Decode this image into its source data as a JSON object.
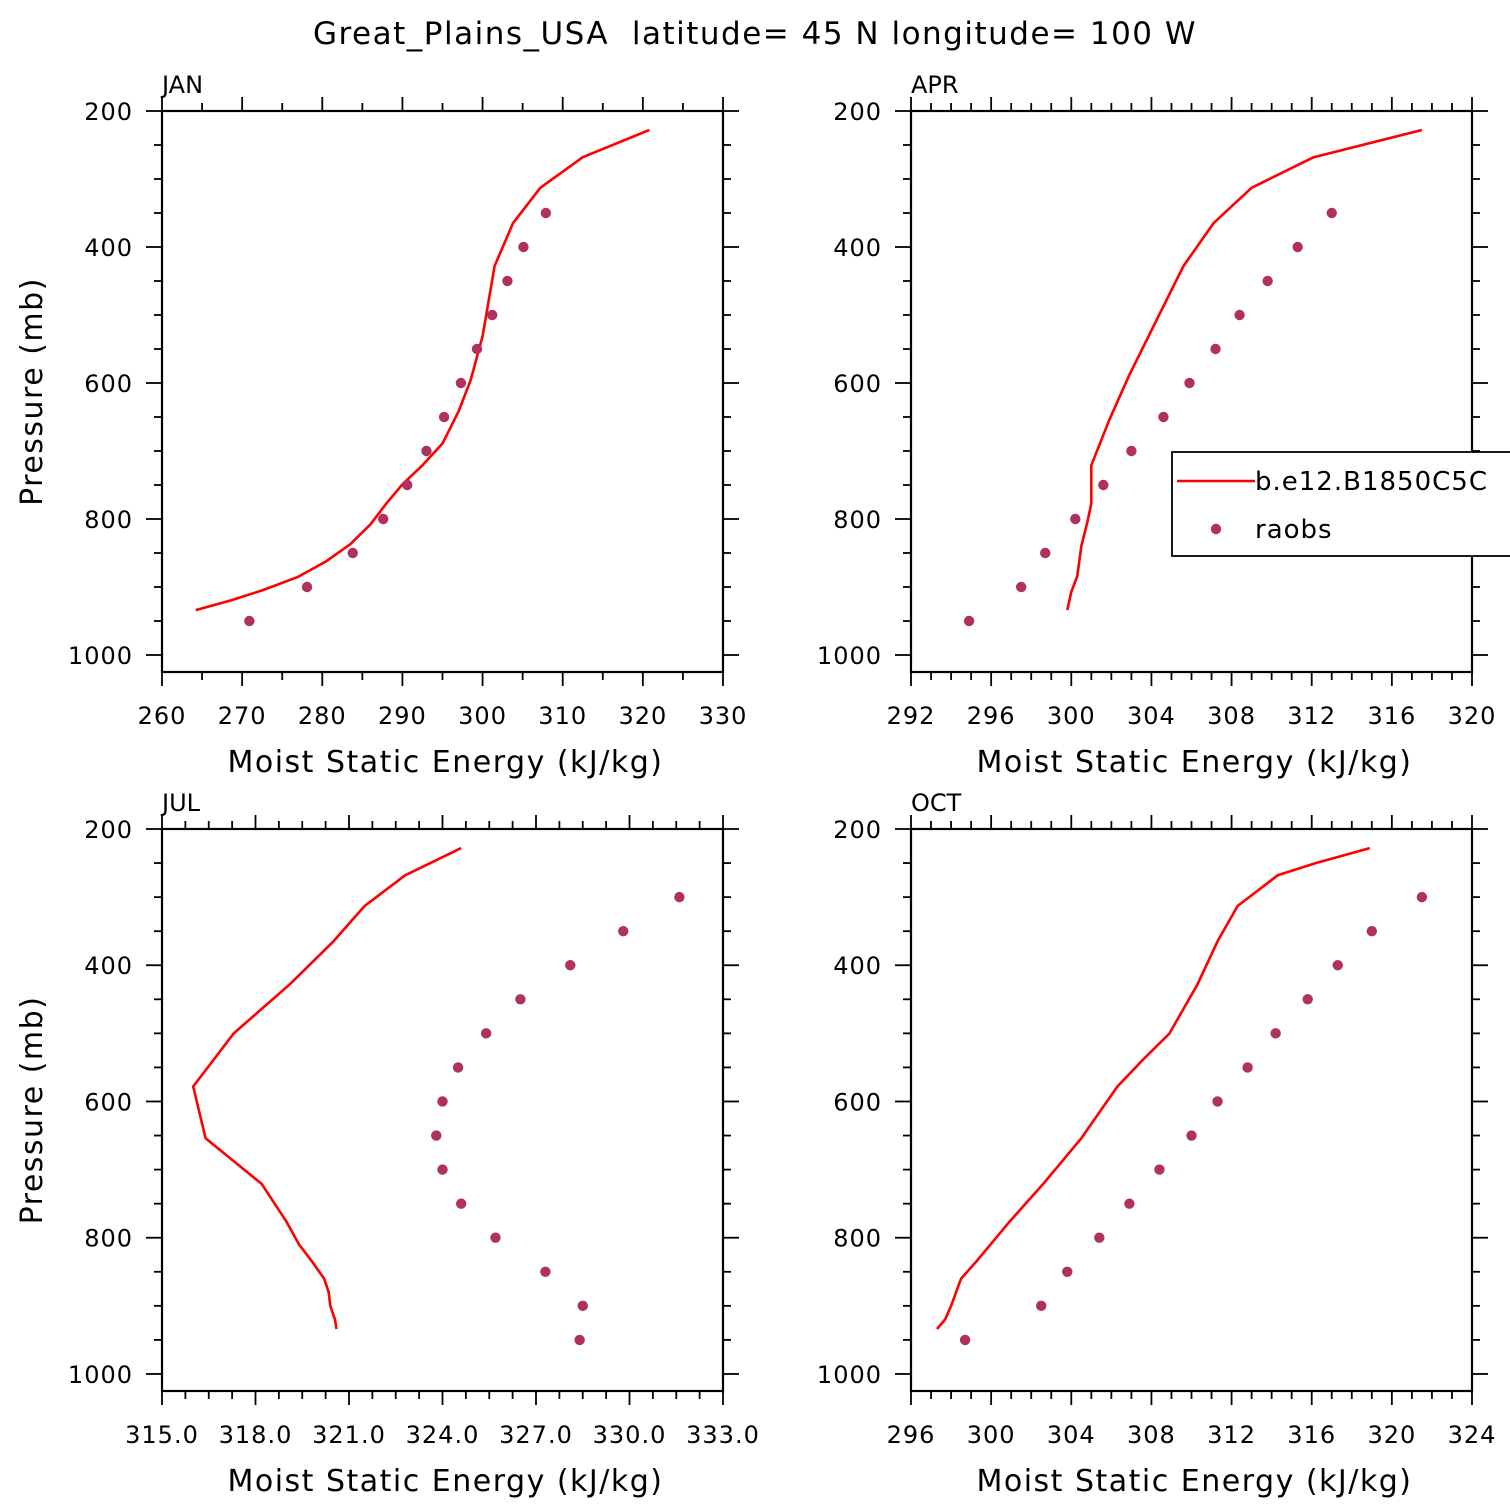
{
  "chart_data": {
    "title": "Great_Plains_USA  latitude= 45 N longitude= 100 W",
    "legend": {
      "placement": "right-middle of APR panel",
      "entries": [
        {
          "label": "b.e12.B1850C5C",
          "style": "line",
          "color": "#ff0000"
        },
        {
          "label": "raobs",
          "style": "marker",
          "color": "#b03060"
        }
      ]
    },
    "panels": [
      {
        "type": "line+scatter",
        "title": "JAN",
        "xlabel": "Moist Static Energy (kJ/kg)",
        "ylabel": "Pressure (mb)",
        "xlim": [
          260,
          330
        ],
        "xticks": [
          260,
          270,
          280,
          290,
          300,
          310,
          320,
          330
        ],
        "xtick_labels": [
          "260",
          "270",
          "280",
          "290",
          "300",
          "310",
          "320",
          "330"
        ],
        "xminor": 5,
        "ylim": [
          200,
          1025
        ],
        "yticks": [
          200,
          400,
          600,
          800,
          1000
        ],
        "ytick_labels": [
          "200",
          "400",
          "600",
          "800",
          "1000"
        ],
        "model": {
          "x": [
            264.2,
            268.5,
            272.5,
            277.0,
            280.5,
            283.5,
            286.0,
            288.0,
            290.0,
            292.5,
            295.0,
            297.0,
            298.5,
            300.0,
            301.5,
            303.8,
            307.2,
            312.5,
            320.8
          ],
          "y": [
            934,
            920,
            905,
            885,
            862,
            837,
            808,
            777,
            749,
            721,
            689,
            642,
            596,
            531,
            428,
            365,
            313,
            268,
            228
          ]
        },
        "obs": {
          "x": [
            270.9,
            278.1,
            283.8,
            287.6,
            290.6,
            293.0,
            295.2,
            297.3,
            299.3,
            301.2,
            303.1,
            305.1,
            307.9
          ],
          "y": [
            950,
            900,
            850,
            800,
            750,
            700,
            650,
            600,
            550,
            500,
            450,
            400,
            350
          ]
        }
      },
      {
        "type": "line+scatter",
        "title": "APR",
        "xlabel": "Moist Static Energy (kJ/kg)",
        "ylabel": "",
        "xlim": [
          292,
          320
        ],
        "xticks": [
          292,
          296,
          300,
          304,
          308,
          312,
          316,
          320
        ],
        "xtick_labels": [
          "292",
          "296",
          "300",
          "304",
          "308",
          "312",
          "316",
          "320"
        ],
        "xminor": 1,
        "ylim": [
          200,
          1025
        ],
        "yticks": [
          200,
          400,
          600,
          800,
          1000
        ],
        "ytick_labels": [
          "200",
          "400",
          "600",
          "800",
          "1000"
        ],
        "model": {
          "x": [
            299.8,
            300.0,
            300.3,
            300.5,
            300.8,
            301.0,
            301.0,
            301.9,
            302.9,
            304.3,
            305.6,
            307.1,
            309.0,
            312.1,
            317.5
          ],
          "y": [
            934,
            907,
            884,
            840,
            805,
            777,
            721,
            654,
            588,
            505,
            428,
            365,
            313,
            268,
            228
          ]
        },
        "obs": {
          "x": [
            294.9,
            297.5,
            298.7,
            300.2,
            301.6,
            303.0,
            304.6,
            305.9,
            307.2,
            308.4,
            309.8,
            311.3,
            313.0
          ],
          "y": [
            950,
            900,
            850,
            800,
            750,
            700,
            650,
            600,
            550,
            500,
            450,
            400,
            350
          ]
        }
      },
      {
        "type": "line+scatter",
        "title": "JUL",
        "xlabel": "Moist Static Energy (kJ/kg)",
        "ylabel": "Pressure (mb)",
        "xlim": [
          315,
          333
        ],
        "xticks": [
          315,
          318,
          321,
          324,
          327,
          330,
          333
        ],
        "xtick_labels": [
          "315.0",
          "318.0",
          "321.0",
          "324.0",
          "327.0",
          "330.0",
          "333.0"
        ],
        "xminor": 0.75,
        "ylim": [
          200,
          1025
        ],
        "yticks": [
          200,
          400,
          600,
          800,
          1000
        ],
        "ytick_labels": [
          "200",
          "400",
          "600",
          "800",
          "1000"
        ],
        "model": {
          "x": [
            320.6,
            320.55,
            320.4,
            320.35,
            320.2,
            319.8,
            319.4,
            319.0,
            318.2,
            316.4,
            316.0,
            317.3,
            319.1,
            320.5,
            321.5,
            322.8,
            324.6
          ],
          "y": [
            934,
            920,
            900,
            880,
            860,
            834,
            810,
            777,
            721,
            654,
            578,
            500,
            428,
            365,
            313,
            268,
            228
          ]
        },
        "obs": {
          "x": [
            328.4,
            328.5,
            327.3,
            325.7,
            324.6,
            324.0,
            323.8,
            324.0,
            324.5,
            325.4,
            326.5,
            328.1,
            329.8,
            331.6
          ],
          "y": [
            950,
            900,
            850,
            800,
            750,
            700,
            650,
            600,
            550,
            500,
            450,
            400,
            350,
            300
          ]
        }
      },
      {
        "type": "line+scatter",
        "title": "OCT",
        "xlabel": "Moist Static Energy (kJ/kg)",
        "ylabel": "",
        "xlim": [
          296,
          324
        ],
        "xticks": [
          296,
          300,
          304,
          308,
          312,
          316,
          320,
          324
        ],
        "xtick_labels": [
          "296",
          "300",
          "304",
          "308",
          "312",
          "316",
          "320",
          "324"
        ],
        "xminor": 1,
        "ylim": [
          200,
          1025
        ],
        "yticks": [
          200,
          400,
          600,
          800,
          1000
        ],
        "ytick_labels": [
          "200",
          "400",
          "600",
          "800",
          "1000"
        ],
        "model": {
          "x": [
            297.3,
            297.7,
            298.0,
            298.5,
            299.2,
            300.9,
            302.6,
            304.5,
            306.3,
            307.5,
            308.9,
            310.3,
            311.3,
            312.3,
            314.3,
            316.2,
            318.9
          ],
          "y": [
            934,
            920,
            900,
            860,
            837,
            777,
            721,
            654,
            578,
            541,
            500,
            428,
            365,
            313,
            268,
            250,
            228
          ]
        },
        "obs": {
          "x": [
            298.7,
            302.5,
            303.8,
            305.4,
            306.9,
            308.4,
            310.0,
            311.3,
            312.8,
            314.2,
            315.8,
            317.3,
            319.0,
            321.5
          ],
          "y": [
            950,
            900,
            850,
            800,
            750,
            700,
            650,
            600,
            550,
            500,
            450,
            400,
            350,
            300
          ]
        }
      }
    ]
  }
}
